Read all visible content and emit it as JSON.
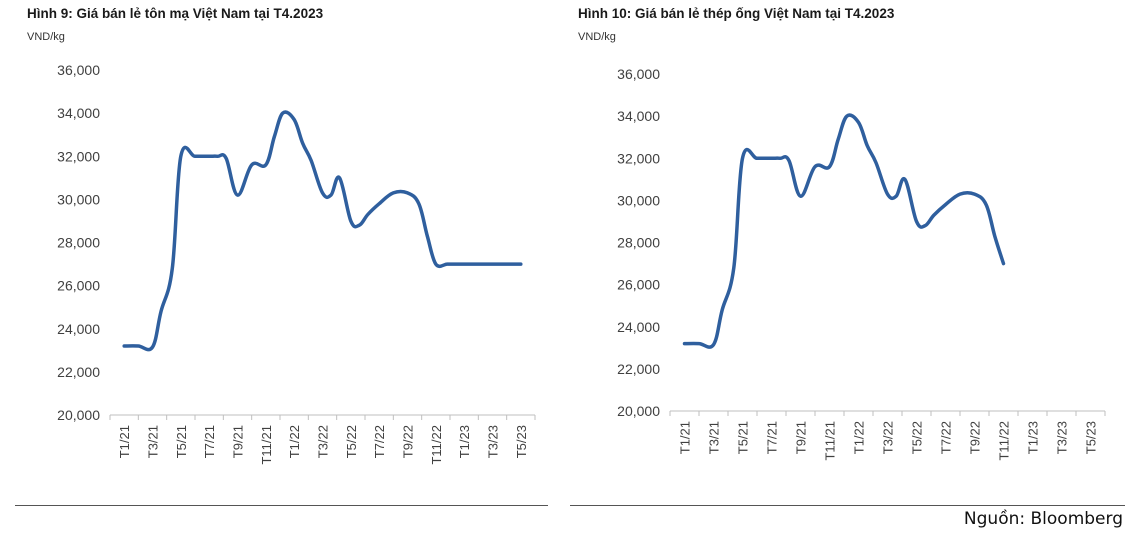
{
  "chart_data": [
    {
      "type": "line",
      "title": "Hình 9: Giá bán lẻ tôn mạ Việt Nam tại T4.2023",
      "unit_label": "VND/kg",
      "ylim": [
        20000,
        36000
      ],
      "y_ticks": [
        20000,
        22000,
        24000,
        26000,
        28000,
        30000,
        32000,
        34000,
        36000
      ],
      "y_tick_labels": [
        "20,000",
        "22,000",
        "24,000",
        "26,000",
        "28,000",
        "30,000",
        "32,000",
        "34,000",
        "36,000"
      ],
      "x_tick_labels": [
        "T1/21",
        "T3/21",
        "T5/21",
        "T7/21",
        "T9/21",
        "T11/21",
        "T1/22",
        "T3/22",
        "T5/22",
        "T7/22",
        "T9/22",
        "T11/22",
        "T1/23",
        "T3/23",
        "T5/23"
      ],
      "grid": false,
      "line_color": "#2f5f9e",
      "x": [
        0,
        0.5,
        1,
        1.3,
        1.7,
        2,
        2.5,
        3,
        3.3,
        3.6,
        4,
        4.5,
        5,
        5.3,
        5.6,
        6,
        6.3,
        6.6,
        7,
        7.3,
        7.6,
        8,
        8.3,
        8.6,
        9,
        9.5,
        10,
        10.4,
        10.7,
        11,
        11.4,
        11.7,
        12,
        12.5,
        13,
        13.5,
        14,
        14.5,
        14.9
      ],
      "y": [
        23200,
        23200,
        23150,
        24800,
        26800,
        32000,
        32000,
        32000,
        32000,
        31900,
        30200,
        31600,
        31600,
        32900,
        34000,
        33700,
        32600,
        31800,
        30300,
        30200,
        31000,
        29000,
        28800,
        29300,
        29800,
        30300,
        30300,
        29800,
        28300,
        27000,
        27000,
        27000,
        27000,
        27000,
        27000,
        27000,
        27000,
        27000,
        27000
      ]
    },
    {
      "type": "line",
      "title": "Hình 10: Giá bán lẻ thép ống Việt Nam tại T4.2023",
      "unit_label": "VND/kg",
      "ylim": [
        20000,
        36000
      ],
      "y_ticks": [
        20000,
        22000,
        24000,
        26000,
        28000,
        30000,
        32000,
        34000,
        36000
      ],
      "y_tick_labels": [
        "20,000",
        "22,000",
        "24,000",
        "26,000",
        "28,000",
        "30,000",
        "32,000",
        "34,000",
        "36,000"
      ],
      "x_tick_labels": [
        "T1/21",
        "T3/21",
        "T5/21",
        "T7/21",
        "T9/21",
        "T11/21",
        "T1/22",
        "T3/22",
        "T5/22",
        "T7/22",
        "T9/22",
        "T11/22",
        "T1/23",
        "T3/23",
        "T5/23"
      ],
      "grid": false,
      "line_color": "#2f5f9e",
      "x": [
        0,
        0.5,
        1,
        1.3,
        1.7,
        2,
        2.5,
        3,
        3.3,
        3.6,
        4,
        4.5,
        5,
        5.3,
        5.6,
        6,
        6.3,
        6.6,
        7,
        7.3,
        7.6,
        8,
        8.3,
        8.6,
        9,
        9.5,
        10,
        10.4,
        10.7,
        11
      ],
      "y": [
        23200,
        23200,
        23150,
        24800,
        26800,
        32000,
        32000,
        32000,
        32000,
        31900,
        30200,
        31600,
        31600,
        32900,
        34000,
        33700,
        32600,
        31800,
        30300,
        30200,
        31000,
        29000,
        28800,
        29300,
        29800,
        30300,
        30300,
        29800,
        28300,
        27000
      ]
    }
  ],
  "source": "Nguồn: Bloomberg"
}
